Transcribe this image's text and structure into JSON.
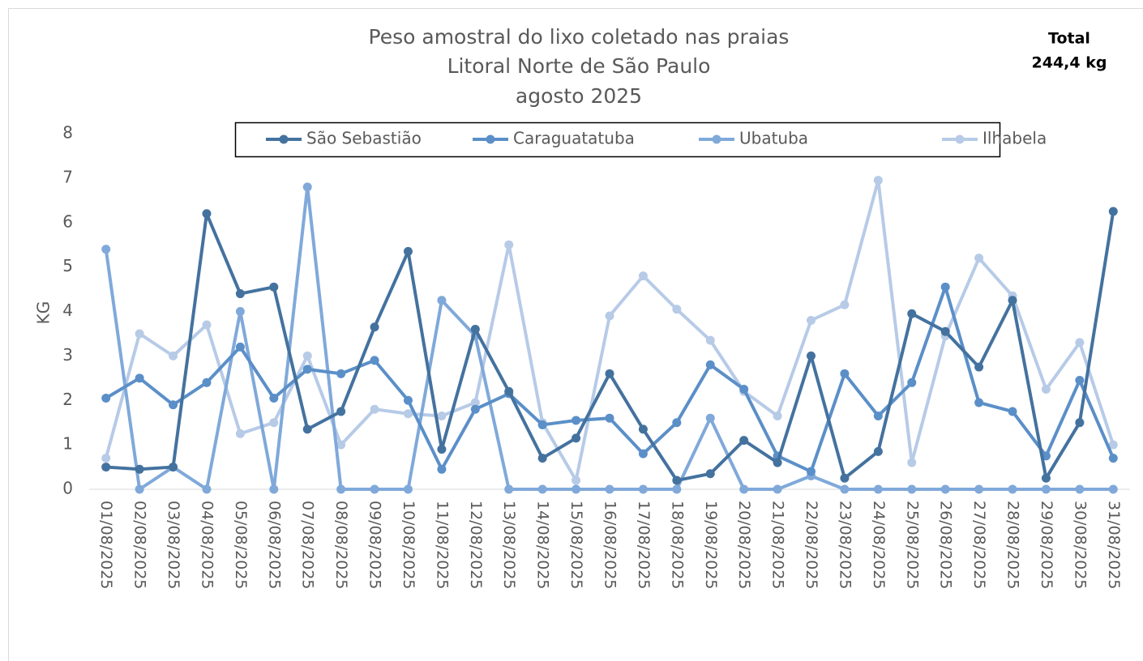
{
  "chart_data": {
    "type": "line",
    "title": [
      "Peso amostral do lixo coletado nas praias",
      "Litoral Norte de São Paulo",
      "agosto 2025"
    ],
    "annotation": [
      "Total",
      "244,4 kg"
    ],
    "y_label": "KG",
    "categories": [
      "01/08/2025",
      "02/08/2025",
      "03/08/2025",
      "04/08/2025",
      "05/08/2025",
      "06/08/2025",
      "07/08/2025",
      "08/08/2025",
      "09/08/2025",
      "10/08/2025",
      "11/08/2025",
      "12/08/2025",
      "13/08/2025",
      "14/08/2025",
      "15/08/2025",
      "16/08/2025",
      "17/08/2025",
      "18/08/2025",
      "19/08/2025",
      "20/08/2025",
      "21/08/2025",
      "22/08/2025",
      "23/08/2025",
      "24/08/2025",
      "25/08/2025",
      "26/08/2025",
      "27/08/2025",
      "28/08/2025",
      "29/08/2025",
      "30/08/2025",
      "31/08/2025"
    ],
    "series": [
      {
        "name": "São Sebastião",
        "color": "#44729f",
        "values": [
          0.5,
          0.45,
          0.5,
          6.2,
          4.4,
          4.55,
          1.35,
          1.75,
          3.65,
          5.35,
          0.9,
          3.6,
          2.2,
          0.7,
          1.15,
          2.6,
          1.35,
          0.2,
          0.35,
          1.1,
          0.6,
          3.0,
          0.25,
          0.85,
          3.95,
          3.55,
          2.75,
          4.25,
          0.25,
          1.5,
          6.25
        ]
      },
      {
        "name": "Caraguatatuba",
        "color": "#5b8fc8",
        "values": [
          2.05,
          2.5,
          1.9,
          2.4,
          3.2,
          2.05,
          2.7,
          2.6,
          2.9,
          2.0,
          0.45,
          1.8,
          2.15,
          1.45,
          1.55,
          1.6,
          0.8,
          1.5,
          2.8,
          2.25,
          0.75,
          0.4,
          2.6,
          1.65,
          2.4,
          4.55,
          1.95,
          1.75,
          0.75,
          2.45,
          0.7
        ]
      },
      {
        "name": "Ubatuba",
        "color": "#80a9da",
        "values": [
          5.4,
          0,
          0.5,
          0,
          4.0,
          0,
          6.8,
          0,
          0,
          0,
          4.25,
          3.45,
          0,
          0,
          0,
          0,
          0,
          0,
          1.6,
          0,
          0,
          0.3,
          0,
          0,
          0,
          0,
          0,
          0,
          0,
          0,
          0
        ]
      },
      {
        "name": "Ilhabela",
        "color": "#b7cbe7",
        "values": [
          0.7,
          3.5,
          3.0,
          3.7,
          1.25,
          1.5,
          3.0,
          1.0,
          1.8,
          1.7,
          1.65,
          1.95,
          5.5,
          1.5,
          0.2,
          3.9,
          4.8,
          4.05,
          3.35,
          2.2,
          1.65,
          3.8,
          4.15,
          6.95,
          0.6,
          3.45,
          5.2,
          4.35,
          2.25,
          3.3,
          1.0
        ]
      }
    ],
    "ylim": [
      0,
      8
    ],
    "yticks": [
      0,
      1,
      2,
      3,
      4,
      5,
      6,
      7,
      8
    ],
    "legend": "top",
    "grid": false
  }
}
